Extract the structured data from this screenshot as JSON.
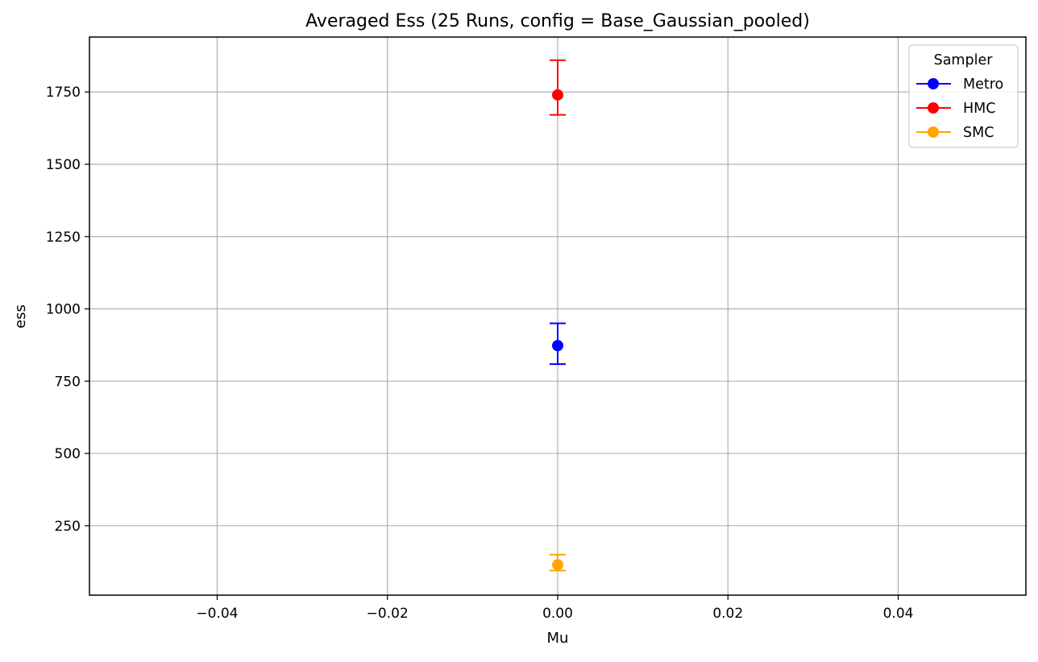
{
  "chart_data": {
    "type": "scatter",
    "title": "Averaged Ess (25 Runs, config = Base_Gaussian_pooled)",
    "xlabel": "Mu",
    "ylabel": "ess",
    "xlim": [
      -0.055,
      0.055
    ],
    "ylim": [
      10,
      1940
    ],
    "x_ticks": [
      -0.04,
      -0.02,
      0.0,
      0.02,
      0.04
    ],
    "x_tick_labels": [
      "−0.04",
      "−0.02",
      "0.00",
      "0.02",
      "0.04"
    ],
    "y_ticks": [
      250,
      500,
      750,
      1000,
      1250,
      1500,
      1750
    ],
    "y_tick_labels": [
      "250",
      "500",
      "750",
      "1000",
      "1250",
      "1500",
      "1750"
    ],
    "grid": true,
    "legend": {
      "title": "Sampler",
      "placement": "top-right"
    },
    "series": [
      {
        "name": "Metro",
        "color": "#0000ff",
        "points": [
          {
            "x": 0.0,
            "y": 873,
            "err_low": 809,
            "err_high": 950
          }
        ]
      },
      {
        "name": "HMC",
        "color": "#ff0000",
        "points": [
          {
            "x": 0.0,
            "y": 1740,
            "err_low": 1671,
            "err_high": 1860
          }
        ]
      },
      {
        "name": "SMC",
        "color": "#ffa500",
        "points": [
          {
            "x": 0.0,
            "y": 115,
            "err_low": 95,
            "err_high": 150
          }
        ]
      }
    ]
  }
}
